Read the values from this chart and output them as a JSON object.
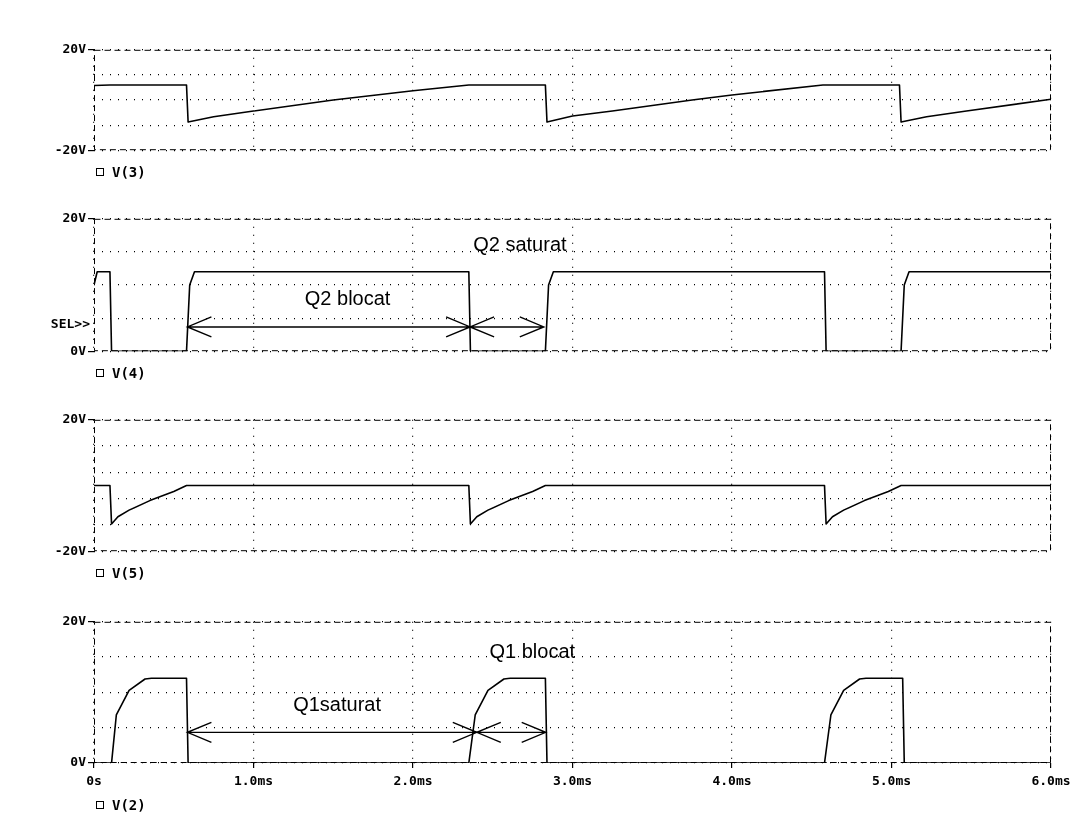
{
  "chart_data": [
    {
      "type": "line",
      "x": [
        0,
        0.1,
        0.58,
        0.59,
        0.75,
        1.0,
        1.5,
        2.0,
        2.35,
        2.83,
        2.84,
        3.0,
        3.25,
        3.75,
        4.0,
        4.57,
        5.05,
        5.06,
        5.22,
        5.47,
        6.0
      ],
      "series": [
        {
          "name": "V(3)",
          "color": "#000000",
          "values": [
            5.8,
            6,
            6,
            -8.8,
            -6.7,
            -4.4,
            0,
            3.7,
            6,
            6,
            -8.8,
            -6.4,
            -4.4,
            0,
            2,
            6,
            6,
            -8.8,
            -6.7,
            -4.4,
            0.3
          ]
        }
      ],
      "xlim": [
        0,
        6
      ],
      "xticks": [
        0,
        1,
        2,
        3,
        4,
        5,
        6
      ],
      "ylim": [
        -20,
        20
      ],
      "yticks": [
        {
          "value": -20,
          "label": "-20V"
        },
        {
          "value": -10,
          "label": null
        },
        {
          "value": 0,
          "label": null
        },
        {
          "value": 10,
          "label": null
        },
        {
          "value": 20,
          "label": "20V"
        }
      ],
      "grid": true,
      "legend": "bottom left",
      "tick_labels": "y"
    },
    {
      "type": "line",
      "x": [
        0,
        0.02,
        0.1,
        0.11,
        0.58,
        0.6,
        0.63,
        2.35,
        2.36,
        2.83,
        2.85,
        2.88,
        4.58,
        4.59,
        5.06,
        5.08,
        5.11,
        6.0
      ],
      "series": [
        {
          "name": "V(4)",
          "color": "#000000",
          "values": [
            10,
            12,
            12,
            0,
            0,
            10,
            12,
            12,
            0,
            0,
            10,
            12,
            12,
            0,
            0,
            10,
            12,
            12
          ]
        }
      ],
      "xlim": [
        0,
        6
      ],
      "xticks": [
        0,
        1,
        2,
        3,
        4,
        5,
        6
      ],
      "ylim": [
        0,
        20
      ],
      "yticks": [
        {
          "value": 0,
          "label": "0V"
        },
        {
          "value": 5,
          "label": null
        },
        {
          "value": 10,
          "label": null
        },
        {
          "value": 15,
          "label": null
        },
        {
          "value": 20,
          "label": "20V"
        }
      ],
      "grid": true,
      "legend": "bottom left",
      "tick_labels": "y",
      "annotations": [
        "SEL>>",
        "Q2 saturat",
        "Q2 blocat"
      ]
    },
    {
      "type": "line",
      "x": [
        0,
        0.1,
        0.11,
        0.15,
        0.22,
        0.35,
        0.5,
        0.58,
        2.35,
        2.36,
        2.4,
        2.47,
        2.6,
        2.75,
        2.83,
        4.58,
        4.59,
        4.63,
        4.7,
        4.83,
        4.98,
        5.06,
        6.0
      ],
      "series": [
        {
          "name": "V(5)",
          "color": "#000000",
          "values": [
            0,
            0,
            -11.7,
            -9.5,
            -7.5,
            -4.6,
            -1.8,
            0,
            0,
            -11.7,
            -9.5,
            -7.5,
            -4.6,
            -1.8,
            0,
            0,
            -11.7,
            -9.5,
            -7.5,
            -4.6,
            -1.8,
            0,
            0
          ]
        }
      ],
      "xlim": [
        0,
        6
      ],
      "xticks": [
        0,
        1,
        2,
        3,
        4,
        5,
        6
      ],
      "ylim": [
        -20,
        20
      ],
      "yticks": [
        {
          "value": -20,
          "label": "-20V"
        },
        {
          "value": -12,
          "label": null
        },
        {
          "value": -4,
          "label": null
        },
        {
          "value": 4,
          "label": null
        },
        {
          "value": 12,
          "label": null
        },
        {
          "value": 20,
          "label": "20V"
        }
      ],
      "grid": true,
      "legend": "bottom left",
      "tick_labels": "y"
    },
    {
      "type": "line",
      "x": [
        0,
        0.11,
        0.14,
        0.22,
        0.32,
        0.36,
        0.58,
        0.59,
        2.35,
        2.39,
        2.47,
        2.57,
        2.61,
        2.83,
        2.84,
        4.58,
        4.62,
        4.7,
        4.8,
        4.84,
        5.07,
        5.08,
        6.0
      ],
      "series": [
        {
          "name": "V(2)",
          "color": "#000000",
          "values": [
            0,
            0,
            6.8,
            10.3,
            11.9,
            12,
            12,
            0,
            0,
            6.8,
            10.3,
            11.9,
            12,
            12,
            0,
            0,
            6.8,
            10.3,
            11.9,
            12,
            12,
            0,
            0
          ]
        }
      ],
      "xlim": [
        0,
        6
      ],
      "xticks": [
        {
          "value": 0,
          "label": "0s"
        },
        {
          "value": 1,
          "label": "1.0ms"
        },
        {
          "value": 2,
          "label": "2.0ms"
        },
        {
          "value": 3,
          "label": "3.0ms"
        },
        {
          "value": 4,
          "label": "4.0ms"
        },
        {
          "value": 5,
          "label": "5.0ms"
        },
        {
          "value": 6,
          "label": "6.0ms"
        }
      ],
      "ylim": [
        0,
        20
      ],
      "yticks": [
        {
          "value": 0,
          "label": "0V"
        },
        {
          "value": 5,
          "label": null
        },
        {
          "value": 10,
          "label": null
        },
        {
          "value": 15,
          "label": null
        },
        {
          "value": 20,
          "label": "20V"
        }
      ],
      "grid": true,
      "legend": "bottom left",
      "annotations": [
        "Q1 blocat",
        "Q1saturat"
      ]
    }
  ]
}
